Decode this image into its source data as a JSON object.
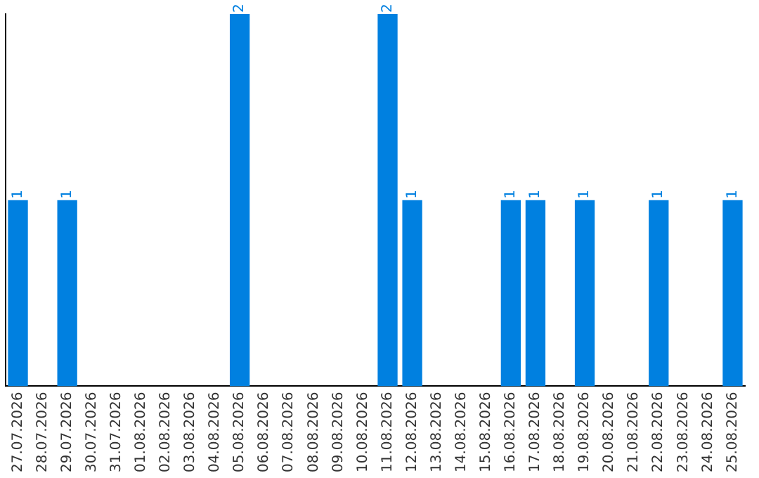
{
  "chart_data": {
    "type": "bar",
    "categories": [
      "27.07.2026",
      "28.07.2026",
      "29.07.2026",
      "30.07.2026",
      "31.07.2026",
      "01.08.2026",
      "02.08.2026",
      "03.08.2026",
      "04.08.2026",
      "05.08.2026",
      "06.08.2026",
      "07.08.2026",
      "08.08.2026",
      "09.08.2026",
      "10.08.2026",
      "11.08.2026",
      "12.08.2026",
      "13.08.2026",
      "14.08.2026",
      "15.08.2026",
      "16.08.2026",
      "17.08.2026",
      "18.08.2026",
      "19.08.2026",
      "20.08.2026",
      "21.08.2026",
      "22.08.2026",
      "23.08.2026",
      "24.08.2026",
      "25.08.2026"
    ],
    "values": [
      1,
      0,
      1,
      0,
      0,
      0,
      0,
      0,
      0,
      2,
      0,
      0,
      0,
      0,
      0,
      2,
      1,
      0,
      0,
      0,
      1,
      1,
      0,
      1,
      0,
      0,
      1,
      0,
      0,
      1
    ],
    "value_labels": [
      "1",
      null,
      "1",
      null,
      null,
      null,
      null,
      null,
      null,
      "2",
      null,
      null,
      null,
      null,
      null,
      "2",
      "1",
      null,
      null,
      null,
      "1",
      "1",
      null,
      "1",
      null,
      null,
      "1",
      null,
      null,
      "1"
    ],
    "color": "#0080e0",
    "ylim": [
      0,
      2
    ],
    "tick_labels": "x",
    "grid": false,
    "legend": false
  }
}
